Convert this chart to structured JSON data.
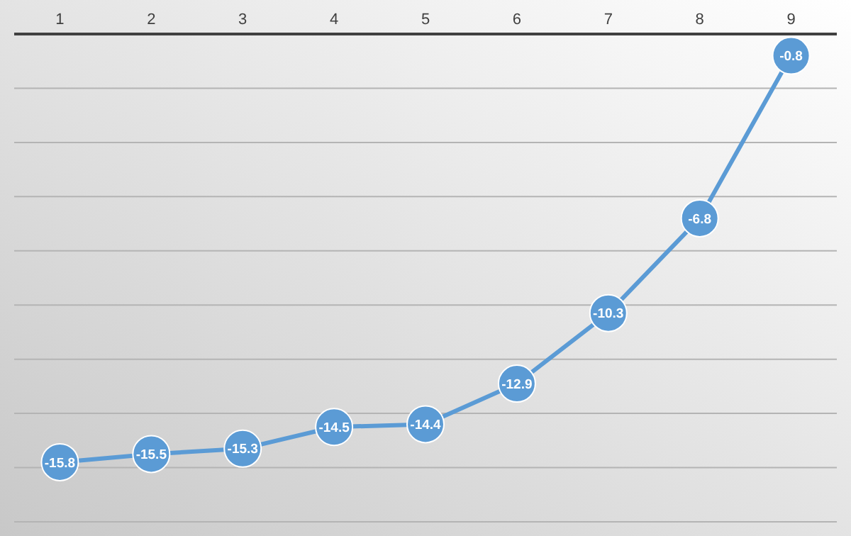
{
  "chart_data": {
    "type": "line",
    "categories": [
      "1",
      "2",
      "3",
      "4",
      "5",
      "6",
      "7",
      "8",
      "9"
    ],
    "series": [
      {
        "color": "#5b9bd5",
        "values": [
          -15.8,
          -15.5,
          -15.3,
          -14.5,
          -14.4,
          -12.9,
          -10.3,
          -6.8,
          -0.8
        ]
      }
    ],
    "ylim": [
      -18,
      0
    ],
    "yticks": [
      {
        "value": -18,
        "label": null
      },
      {
        "value": -16,
        "label": null
      },
      {
        "value": -14,
        "label": null
      },
      {
        "value": -12,
        "label": null
      },
      {
        "value": -10,
        "label": null
      },
      {
        "value": -8,
        "label": null
      },
      {
        "value": -6,
        "label": null
      },
      {
        "value": -4,
        "label": null
      },
      {
        "value": -2,
        "label": null
      },
      {
        "value": 0,
        "label": null
      }
    ],
    "grid": "y",
    "data_labels": true,
    "marker": "circle",
    "line_style": "solid"
  }
}
